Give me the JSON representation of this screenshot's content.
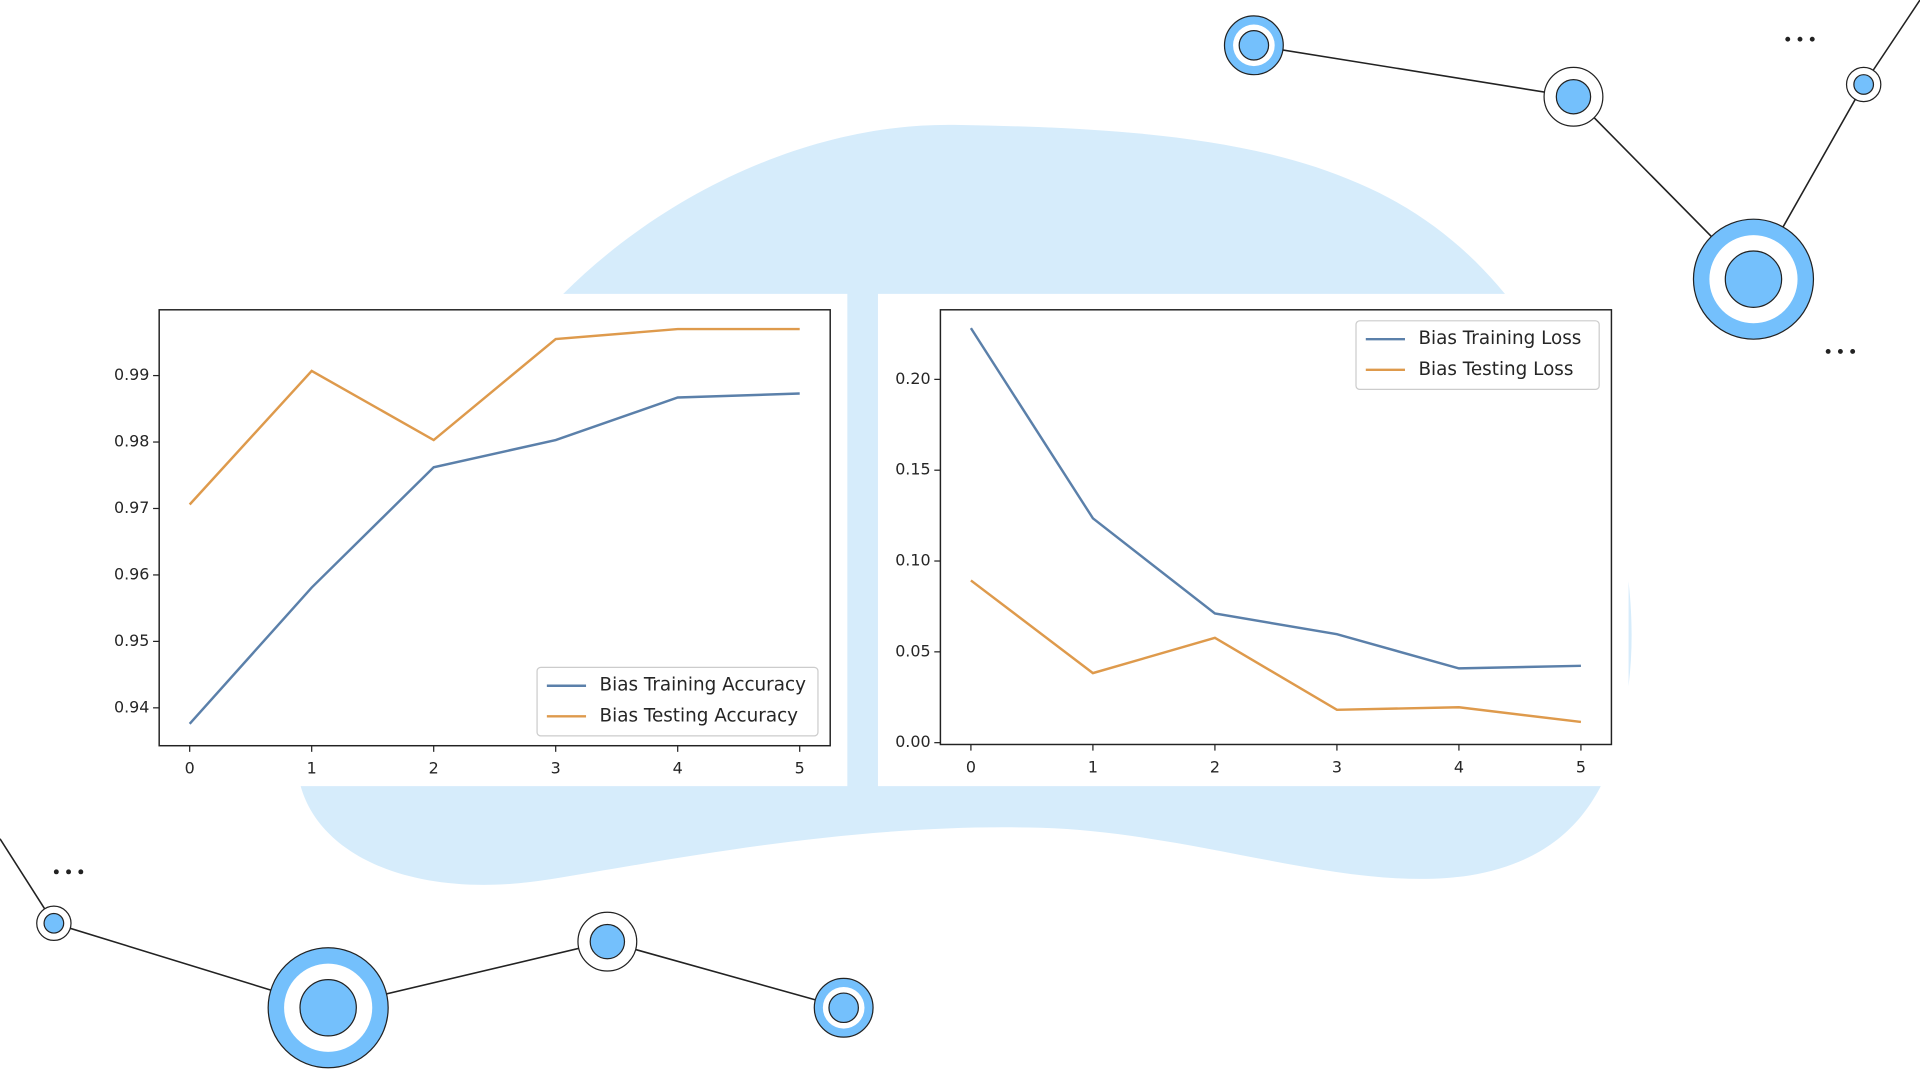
{
  "chart_data": [
    {
      "type": "line",
      "x": [
        0,
        1,
        2,
        3,
        4,
        5
      ],
      "xlim": [
        -0.25,
        5.25
      ],
      "xticks": [
        0,
        1,
        2,
        3,
        4,
        5
      ],
      "ylim": [
        0.9343,
        0.9999
      ],
      "yticks": [
        0.94,
        0.95,
        0.96,
        0.97,
        0.98,
        0.99
      ],
      "legend": "lower right",
      "series": [
        {
          "name": "Bias Training Accuracy",
          "color": "#5b80aa",
          "values": [
            0.9376,
            0.9581,
            0.9762,
            0.9803,
            0.9867,
            0.9873
          ]
        },
        {
          "name": "Bias Testing Accuracy",
          "color": "#de9a4c",
          "values": [
            0.9706,
            0.9907,
            0.9803,
            0.9955,
            0.997,
            0.997
          ]
        }
      ]
    },
    {
      "type": "line",
      "x": [
        0,
        1,
        2,
        3,
        4,
        5
      ],
      "xlim": [
        -0.25,
        5.25
      ],
      "xticks": [
        0,
        1,
        2,
        3,
        4,
        5
      ],
      "ylim": [
        -0.001,
        0.2383
      ],
      "yticks": [
        {
          "value": 0,
          "label": "0.00"
        },
        0.05,
        {
          "value": 0.1,
          "label": "0.10"
        },
        0.15,
        {
          "value": 0.2,
          "label": "0.20"
        }
      ],
      "legend": "upper right",
      "series": [
        {
          "name": "Bias Training Loss",
          "color": "#5b80aa",
          "values": [
            0.2282,
            0.1235,
            0.0711,
            0.0597,
            0.0409,
            0.0423
          ]
        },
        {
          "name": "Bias Testing Loss",
          "color": "#de9a4c",
          "values": [
            0.0893,
            0.0383,
            0.0577,
            0.0181,
            0.0195,
            0.0114
          ]
        }
      ]
    }
  ]
}
